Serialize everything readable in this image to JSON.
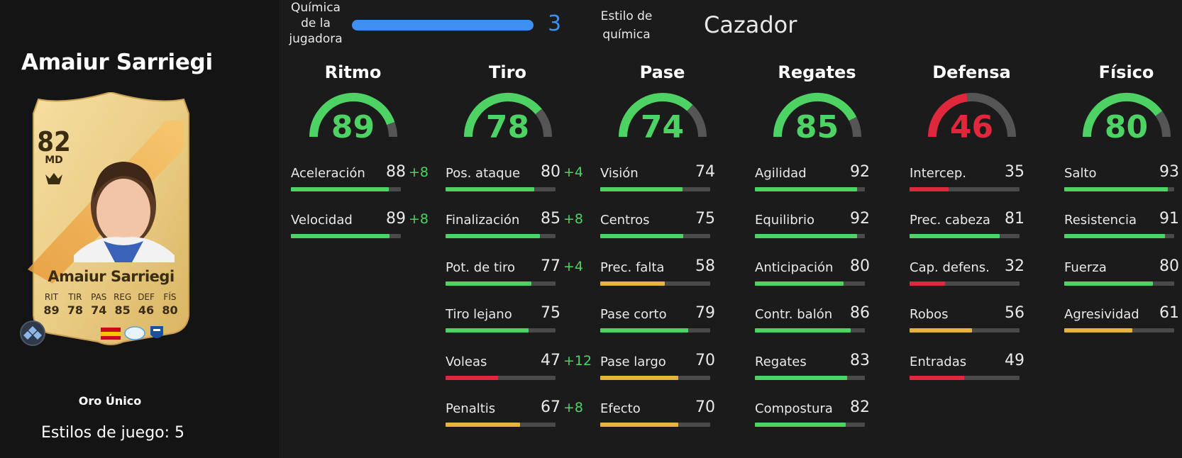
{
  "player": {
    "name": "Amaiur Sarriegi",
    "rarity": "Oro Único",
    "playstyles": "Estilos de juego: 5"
  },
  "card": {
    "overall": "82",
    "position": "MD",
    "name": "Amaiur Sarriegi",
    "stat_labels": [
      "RIT",
      "TIR",
      "PAS",
      "REG",
      "DEF",
      "FÍS"
    ],
    "stat_values": [
      "89",
      "78",
      "74",
      "85",
      "46",
      "80"
    ]
  },
  "chemistry": {
    "label": "Química de la jugadora",
    "value": "3",
    "style_label": "Estilo de química",
    "style_value": "Cazador"
  },
  "colors": {
    "green": "#4cd364",
    "yellow": "#e6b43c",
    "red": "#e0283c",
    "blue": "#3d8ff0"
  },
  "categories": [
    {
      "title": "Ritmo",
      "value": "89",
      "level": 0.89,
      "color": "green",
      "stats": [
        {
          "label": "Aceleración",
          "value": "88",
          "bonus": "+8",
          "color": "green"
        },
        {
          "label": "Velocidad",
          "value": "89",
          "bonus": "+8",
          "color": "green"
        }
      ]
    },
    {
      "title": "Tiro",
      "value": "78",
      "level": 0.78,
      "color": "green",
      "stats": [
        {
          "label": "Pos. ataque",
          "value": "80",
          "bonus": "+4",
          "color": "green"
        },
        {
          "label": "Finalización",
          "value": "85",
          "bonus": "+8",
          "color": "green"
        },
        {
          "label": "Pot. de tiro",
          "value": "77",
          "bonus": "+4",
          "color": "green"
        },
        {
          "label": "Tiro lejano",
          "value": "75",
          "bonus": "",
          "color": "green"
        },
        {
          "label": "Voleas",
          "value": "47",
          "bonus": "+12",
          "color": "red"
        },
        {
          "label": "Penaltis",
          "value": "67",
          "bonus": "+8",
          "color": "yellow"
        }
      ]
    },
    {
      "title": "Pase",
      "value": "74",
      "level": 0.74,
      "color": "green",
      "stats": [
        {
          "label": "Visión",
          "value": "74",
          "bonus": "",
          "color": "green"
        },
        {
          "label": "Centros",
          "value": "75",
          "bonus": "",
          "color": "green"
        },
        {
          "label": "Prec. falta",
          "value": "58",
          "bonus": "",
          "color": "yellow"
        },
        {
          "label": "Pase corto",
          "value": "79",
          "bonus": "",
          "color": "green"
        },
        {
          "label": "Pase largo",
          "value": "70",
          "bonus": "",
          "color": "yellow"
        },
        {
          "label": "Efecto",
          "value": "70",
          "bonus": "",
          "color": "yellow"
        }
      ]
    },
    {
      "title": "Regates",
      "value": "85",
      "level": 0.85,
      "color": "green",
      "stats": [
        {
          "label": "Agilidad",
          "value": "92",
          "bonus": "",
          "color": "green"
        },
        {
          "label": "Equilibrio",
          "value": "92",
          "bonus": "",
          "color": "green"
        },
        {
          "label": "Anticipación",
          "value": "80",
          "bonus": "",
          "color": "green"
        },
        {
          "label": "Contr. balón",
          "value": "86",
          "bonus": "",
          "color": "green"
        },
        {
          "label": "Regates",
          "value": "83",
          "bonus": "",
          "color": "green"
        },
        {
          "label": "Compostura",
          "value": "82",
          "bonus": "",
          "color": "green"
        }
      ]
    },
    {
      "title": "Defensa",
      "value": "46",
      "level": 0.46,
      "color": "red",
      "stats": [
        {
          "label": "Intercep.",
          "value": "35",
          "bonus": "",
          "color": "red"
        },
        {
          "label": "Prec. cabeza",
          "value": "81",
          "bonus": "",
          "color": "green"
        },
        {
          "label": "Cap. defens.",
          "value": "32",
          "bonus": "",
          "color": "red"
        },
        {
          "label": "Robos",
          "value": "56",
          "bonus": "",
          "color": "yellow"
        },
        {
          "label": "Entradas",
          "value": "49",
          "bonus": "",
          "color": "red"
        }
      ]
    },
    {
      "title": "Físico",
      "value": "80",
      "level": 0.8,
      "color": "green",
      "stats": [
        {
          "label": "Salto",
          "value": "93",
          "bonus": "",
          "color": "green"
        },
        {
          "label": "Resistencia",
          "value": "91",
          "bonus": "",
          "color": "green"
        },
        {
          "label": "Fuerza",
          "value": "80",
          "bonus": "",
          "color": "green"
        },
        {
          "label": "Agresividad",
          "value": "61",
          "bonus": "",
          "color": "yellow"
        }
      ]
    }
  ]
}
